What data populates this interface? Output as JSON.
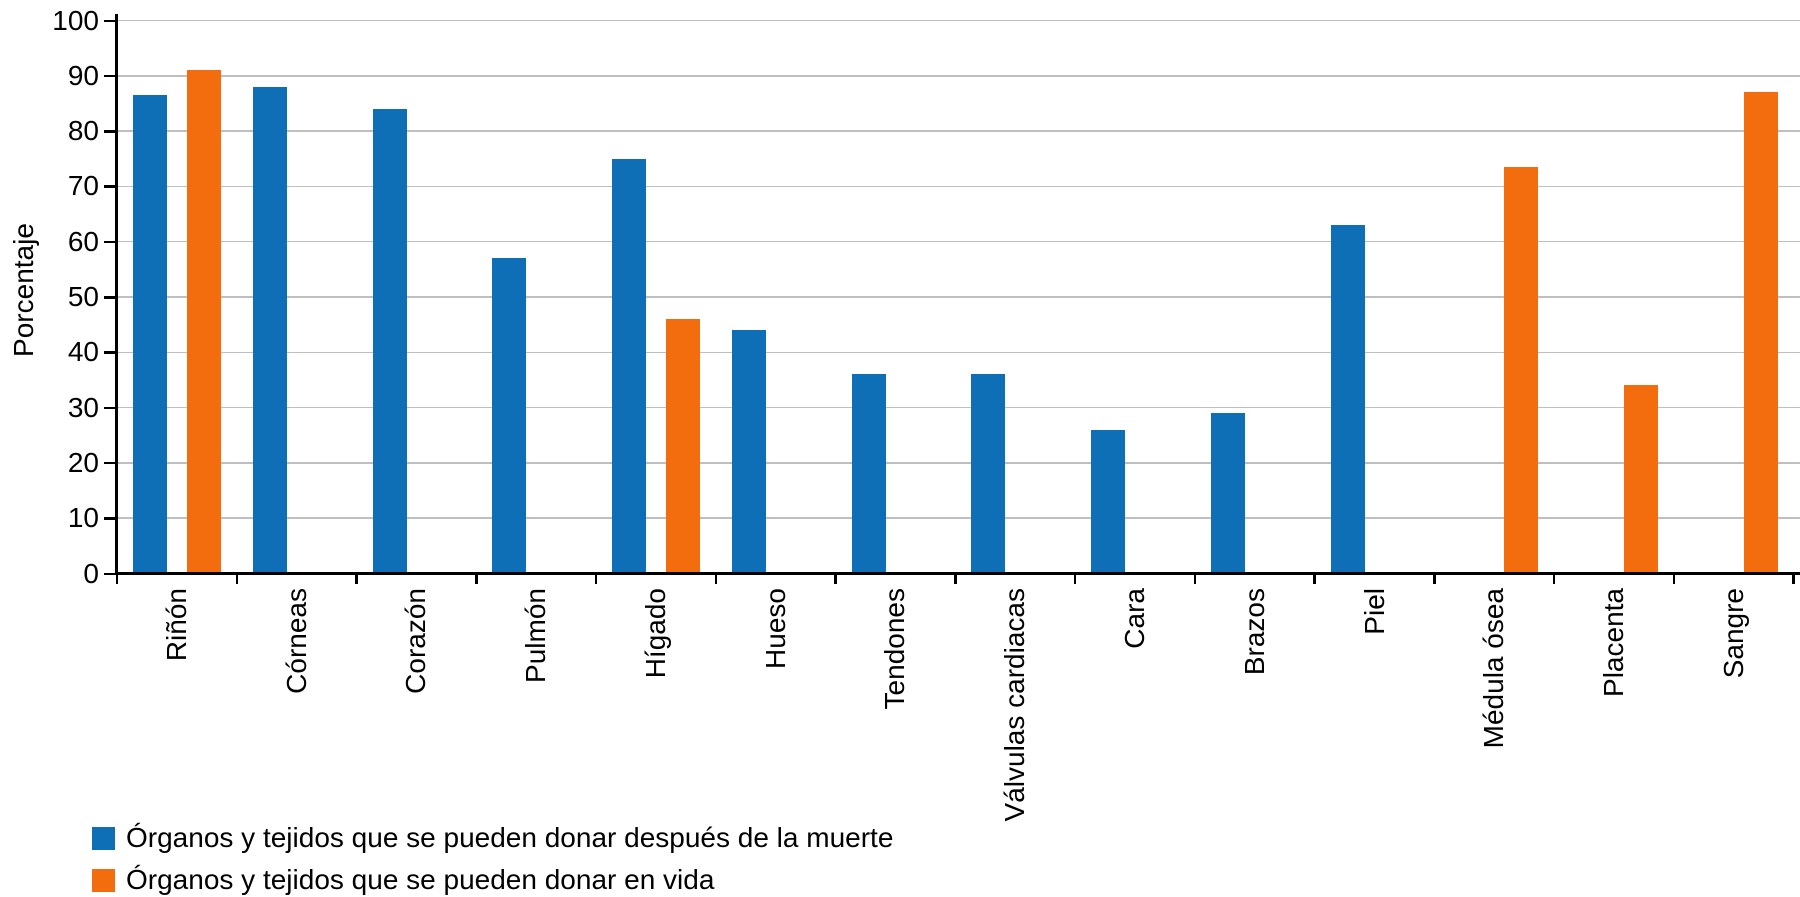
{
  "chart_data": {
    "type": "bar",
    "title": "",
    "xlabel": "",
    "ylabel": "Porcentaje",
    "ylim": [
      0,
      100
    ],
    "yticks": [
      0,
      10,
      20,
      30,
      40,
      50,
      60,
      70,
      80,
      90,
      100
    ],
    "grid": "horizontal",
    "grid_color": "#bfbfbf",
    "axis_color": "#000000",
    "legend_position": "bottom-left",
    "categories": [
      "Riñón",
      "Córneas",
      "Corazón",
      "Pulmón",
      "Hígado",
      "Hueso",
      "Tendones",
      "Válvulas cardiacas",
      "Cara",
      "Brazos",
      "Piel",
      "Médula ósea",
      "Placenta",
      "Sangre"
    ],
    "series": [
      {
        "name": "Órganos y tejidos que se pueden donar después de la muerte",
        "color": "#0e6eb6",
        "values": [
          86.5,
          88,
          84,
          57,
          75,
          44,
          36,
          36,
          26,
          29,
          63,
          null,
          null,
          null
        ]
      },
      {
        "name": "Órganos y tejidos que se pueden donar en vida",
        "color": "#f36d0f",
        "values": [
          91,
          null,
          null,
          null,
          46,
          null,
          null,
          null,
          null,
          null,
          null,
          73.5,
          34,
          87
        ]
      }
    ]
  }
}
